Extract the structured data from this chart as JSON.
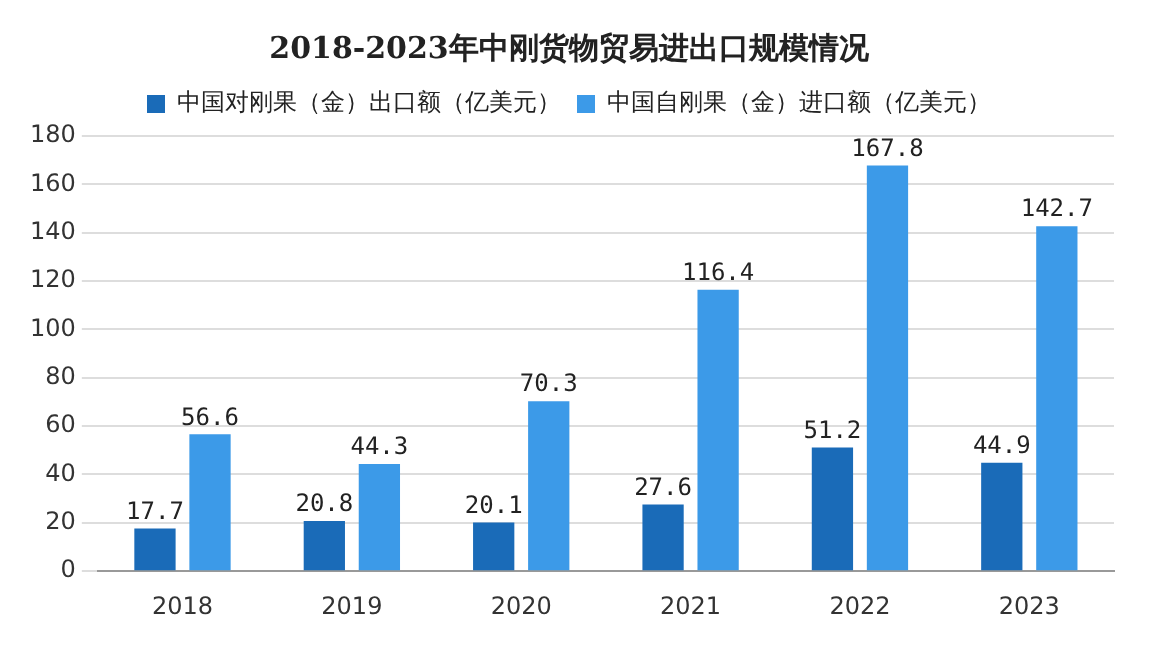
{
  "chart_data": {
    "type": "bar",
    "title": "2018-2023年中刚货物贸易进出口规模情况",
    "categories": [
      "2018",
      "2019",
      "2020",
      "2021",
      "2022",
      "2023"
    ],
    "series": [
      {
        "name": "中国对刚果（金）出口额（亿美元）",
        "color": "#1a6bb8",
        "values": [
          17.7,
          20.8,
          20.1,
          27.6,
          51.2,
          44.9
        ]
      },
      {
        "name": "中国自刚果（金）进口额（亿美元）",
        "color": "#3c9ae8",
        "values": [
          56.6,
          44.3,
          70.3,
          116.4,
          167.8,
          142.7
        ]
      }
    ],
    "ylim": [
      0,
      180
    ],
    "yticks": [
      0,
      20,
      40,
      60,
      80,
      100,
      120,
      140,
      160,
      180
    ],
    "grid": "y",
    "legend": "top",
    "data_labels": true
  }
}
